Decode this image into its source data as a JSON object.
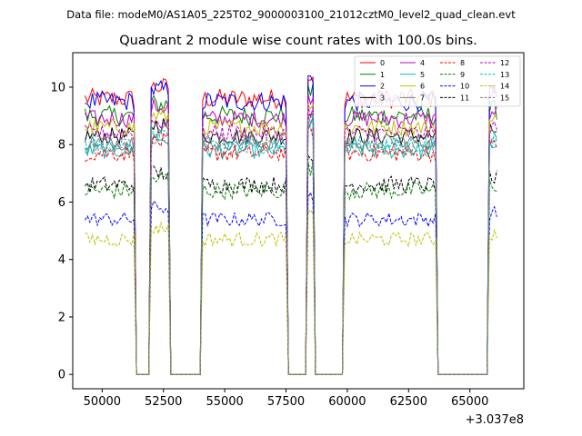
{
  "chart_data": {
    "type": "line",
    "suptitle": "Data file: modeM0/AS1A05_225T02_9000003100_21012cztM0_level2_quad_clean.evt",
    "title": "Quadrant 2 module wise count rates with 100.0s bins.",
    "xlabel": "",
    "ylabel": "",
    "x_offset_label": "+3.037e8",
    "xlim": [
      48800,
      67200
    ],
    "ylim": [
      -0.5,
      11.2
    ],
    "x_ticks": [
      50000,
      52500,
      55000,
      57500,
      60000,
      62500,
      65000
    ],
    "x_tick_labels": [
      "50000",
      "52500",
      "55000",
      "57500",
      "60000",
      "62500",
      "65000"
    ],
    "y_ticks": [
      0,
      2,
      4,
      6,
      8,
      10
    ],
    "y_tick_labels": [
      "0",
      "2",
      "4",
      "6",
      "8",
      "10"
    ],
    "legend_position": "upper-right",
    "legend_columns": 4,
    "active_intervals": [
      [
        49300,
        51300
      ],
      [
        52000,
        52700
      ],
      [
        54100,
        57500
      ],
      [
        58400,
        58600
      ],
      [
        59900,
        63600
      ],
      [
        65800,
        66100
      ]
    ],
    "x_step": 100,
    "series": [
      {
        "name": "0",
        "color": "#ff0000",
        "dash": "solid",
        "level": 9.6,
        "amp": 0.35
      },
      {
        "name": "1",
        "color": "#008000",
        "dash": "solid",
        "level": 9.0,
        "amp": 0.35
      },
      {
        "name": "2",
        "color": "#0000ff",
        "dash": "solid",
        "level": 9.5,
        "amp": 0.35
      },
      {
        "name": "3",
        "color": "#000000",
        "dash": "solid",
        "level": 8.3,
        "amp": 0.3
      },
      {
        "name": "4",
        "color": "#bf00bf",
        "dash": "solid",
        "level": 8.9,
        "amp": 0.3
      },
      {
        "name": "5",
        "color": "#00bfbf",
        "dash": "solid",
        "level": 7.8,
        "amp": 0.3
      },
      {
        "name": "6",
        "color": "#bfbf00",
        "dash": "solid",
        "level": 8.6,
        "amp": 0.3
      },
      {
        "name": "7",
        "color": "#808080",
        "dash": "solid",
        "level": 8.1,
        "amp": 0.3
      },
      {
        "name": "8",
        "color": "#ff0000",
        "dash": "dashed",
        "level": 7.7,
        "amp": 0.3
      },
      {
        "name": "9",
        "color": "#008000",
        "dash": "dashed",
        "level": 6.4,
        "amp": 0.3
      },
      {
        "name": "10",
        "color": "#0000ff",
        "dash": "dashed",
        "level": 5.4,
        "amp": 0.25
      },
      {
        "name": "11",
        "color": "#000000",
        "dash": "dashed",
        "level": 6.6,
        "amp": 0.3
      },
      {
        "name": "12",
        "color": "#bf00bf",
        "dash": "dashed",
        "level": 8.4,
        "amp": 0.3
      },
      {
        "name": "13",
        "color": "#00bfbf",
        "dash": "dashed",
        "level": 8.0,
        "amp": 0.3
      },
      {
        "name": "14",
        "color": "#bfbf00",
        "dash": "dashed",
        "level": 4.7,
        "amp": 0.25
      },
      {
        "name": "15",
        "color": "#808080",
        "dash": "dashed",
        "level": 7.9,
        "amp": 0.3
      }
    ]
  }
}
